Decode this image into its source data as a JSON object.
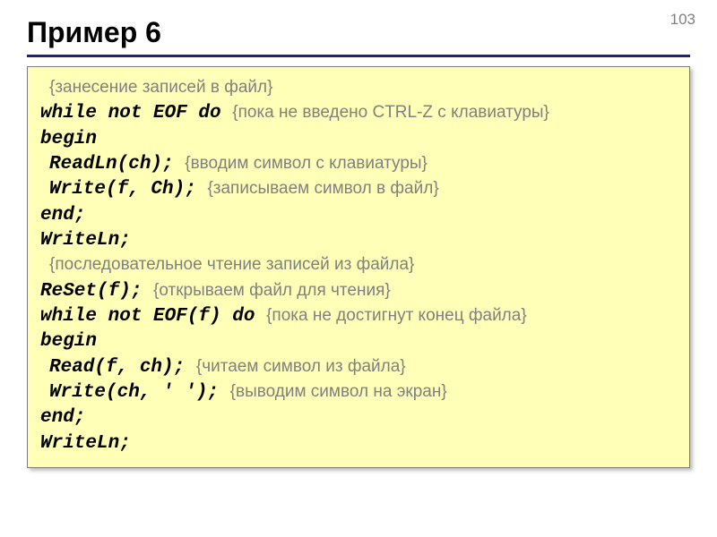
{
  "page_number": "103",
  "title": "Пример 6",
  "colors": {
    "background": "#ffffff",
    "code_box_bg": "#ffffb8",
    "code_box_border": "#7a7a7a",
    "title_rule": "#1f1f8a",
    "comment": "#808080",
    "text": "#000000"
  },
  "font_sizes": {
    "title": 32,
    "code": 21,
    "comment": 19,
    "page_number": 17
  },
  "lines": [
    {
      "indent": 1,
      "code": "",
      "comment": "{занесение записей в файл}"
    },
    {
      "indent": 0,
      "code": "while not EOF do",
      "code_bold_italic": true,
      "spacer": "   ",
      "comment": "{пока не введено CTRL-Z с клавиатуры}"
    },
    {
      "indent": 0,
      "code": "begin",
      "code_bold_italic": true
    },
    {
      "indent": 1,
      "code": "ReadLn(ch);",
      "code_bold_italic": true,
      "spacer": "   ",
      "comment": "{вводим символ с клавиатуры}"
    },
    {
      "indent": 1,
      "code": "Write(f, Ch);",
      "code_bold_italic": true,
      "spacer": "    ",
      "comment": "{записываем символ в файл}"
    },
    {
      "indent": 0,
      "code": "end;",
      "code_bold_italic": true
    },
    {
      "indent": 0,
      "code": "WriteLn;",
      "code_bold_italic": true
    },
    {
      "indent": 1,
      "code": "",
      "comment": "{последовательное чтение записей из файла}"
    },
    {
      "indent": 0,
      "code": "ReSet(f);",
      "code_bold_italic": true,
      "spacer": "       ",
      "comment": "{открываем файл для чтения}"
    },
    {
      "indent": 0,
      "code": "while not EOF(f) do",
      "code_bold_italic": true,
      "spacer": " ",
      "comment": "{пока не достигнут конец файла}"
    },
    {
      "indent": 0,
      "code": "begin",
      "code_bold_italic": true
    },
    {
      "indent": 1,
      "code": "Read(f, ch);",
      "code_bold_italic": true,
      "spacer": "  ",
      "comment": "{читаем символ из файла}"
    },
    {
      "indent": 1,
      "code": "Write(ch, ' ');",
      "code_bold_italic": true,
      "spacer": "   ",
      "comment": "{выводим символ на экран}"
    },
    {
      "indent": 0,
      "code": "end;",
      "code_bold_italic": true
    },
    {
      "indent": 0,
      "code": "WriteLn;",
      "code_bold_italic": true
    }
  ]
}
